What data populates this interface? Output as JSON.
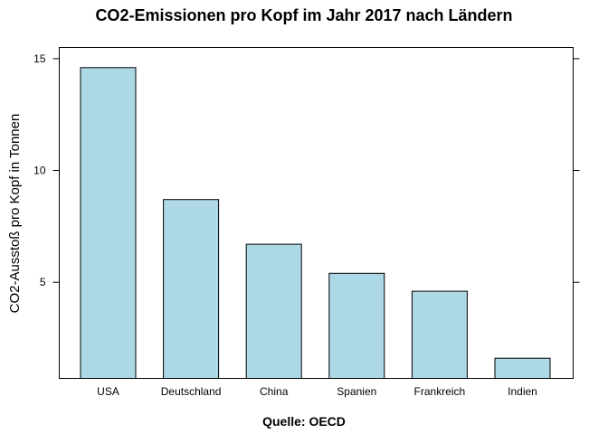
{
  "chart_data": {
    "type": "bar",
    "title": "CO2-Emissionen pro Kopf im Jahr 2017 nach Ländern",
    "xlabel": "Quelle: OECD",
    "ylabel": "CO2-Ausstoß pro Kopf in Tonnen",
    "categories": [
      "USA",
      "Deutschland",
      "China",
      "Spanien",
      "Frankreich",
      "Indien"
    ],
    "values": [
      14.6,
      8.7,
      6.7,
      5.4,
      4.6,
      1.6
    ],
    "ylim": [
      0.7,
      15.5
    ],
    "yticks": [
      5,
      10,
      15
    ],
    "bar_color": "#add8e6",
    "grid": false
  }
}
